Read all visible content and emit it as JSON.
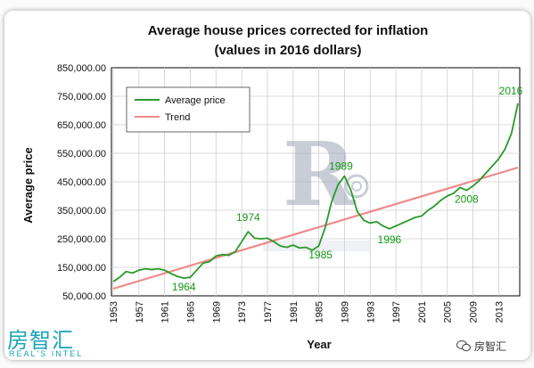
{
  "chart_data": {
    "type": "line",
    "title": "Average house prices corrected for inflation",
    "subtitle": "(values in 2016 dollars)",
    "xlabel": "Year",
    "ylabel": "Average price",
    "ylim": [
      50000,
      850000
    ],
    "xlim": [
      1953,
      2016
    ],
    "y_ticks": [
      "850,000.00",
      "750,000.00",
      "650,000.00",
      "550,000.00",
      "450,000.00",
      "350,000.00",
      "250,000.00",
      "150,000.00",
      "50,000.00"
    ],
    "y_tick_values": [
      850000,
      750000,
      650000,
      550000,
      450000,
      350000,
      250000,
      150000,
      50000
    ],
    "x_ticks": [
      "1953",
      "1957",
      "1961",
      "1965",
      "1969",
      "1973",
      "1977",
      "1981",
      "1985",
      "1989",
      "1993",
      "1997",
      "2001",
      "2005",
      "2009",
      "2013"
    ],
    "x_tick_values": [
      1953,
      1957,
      1961,
      1965,
      1969,
      1973,
      1977,
      1981,
      1985,
      1989,
      1993,
      1997,
      2001,
      2005,
      2009,
      2013
    ],
    "grid": true,
    "legend_position": "top-left",
    "series": [
      {
        "name": "Average price",
        "color": "#2a9a2a",
        "x": [
          1953,
          1954,
          1955,
          1956,
          1957,
          1958,
          1959,
          1960,
          1961,
          1962,
          1963,
          1964,
          1965,
          1966,
          1967,
          1968,
          1969,
          1970,
          1971,
          1972,
          1973,
          1974,
          1975,
          1976,
          1977,
          1978,
          1979,
          1980,
          1981,
          1982,
          1983,
          1984,
          1985,
          1986,
          1987,
          1988,
          1989,
          1990,
          1991,
          1992,
          1993,
          1994,
          1995,
          1996,
          1997,
          1998,
          1999,
          2000,
          2001,
          2002,
          2003,
          2004,
          2005,
          2006,
          2007,
          2008,
          2009,
          2010,
          2011,
          2012,
          2013,
          2014,
          2015,
          2016
        ],
        "values": [
          100000,
          115000,
          135000,
          130000,
          140000,
          145000,
          142000,
          145000,
          140000,
          128000,
          118000,
          112000,
          115000,
          140000,
          165000,
          170000,
          190000,
          195000,
          192000,
          205000,
          240000,
          275000,
          252000,
          250000,
          252000,
          240000,
          225000,
          220000,
          228000,
          218000,
          220000,
          210000,
          225000,
          290000,
          380000,
          440000,
          470000,
          420000,
          345000,
          315000,
          305000,
          310000,
          295000,
          285000,
          295000,
          305000,
          315000,
          325000,
          330000,
          350000,
          365000,
          385000,
          400000,
          410000,
          430000,
          420000,
          435000,
          455000,
          480000,
          505000,
          530000,
          565000,
          620000,
          725000
        ]
      },
      {
        "name": "Trend",
        "color": "#ef8a8a",
        "x": [
          1953,
          2016
        ],
        "values": [
          75000,
          500000
        ]
      }
    ],
    "annotations": [
      {
        "text": "1964",
        "x": 1964,
        "y": 112000
      },
      {
        "text": "1974",
        "x": 1974,
        "y": 275000
      },
      {
        "text": "1985",
        "x": 1985,
        "y": 225000
      },
      {
        "text": "1989",
        "x": 1989,
        "y": 470000
      },
      {
        "text": "1996",
        "x": 1996,
        "y": 285000
      },
      {
        "text": "2008",
        "x": 2008,
        "y": 420000
      },
      {
        "text": "2016",
        "x": 2016,
        "y": 725000
      }
    ]
  },
  "brand": {
    "logo_cn": "房智汇",
    "logo_en": "REAL'S INTEL",
    "wechat_label": "房智汇",
    "accent": "#1aa3b8"
  }
}
